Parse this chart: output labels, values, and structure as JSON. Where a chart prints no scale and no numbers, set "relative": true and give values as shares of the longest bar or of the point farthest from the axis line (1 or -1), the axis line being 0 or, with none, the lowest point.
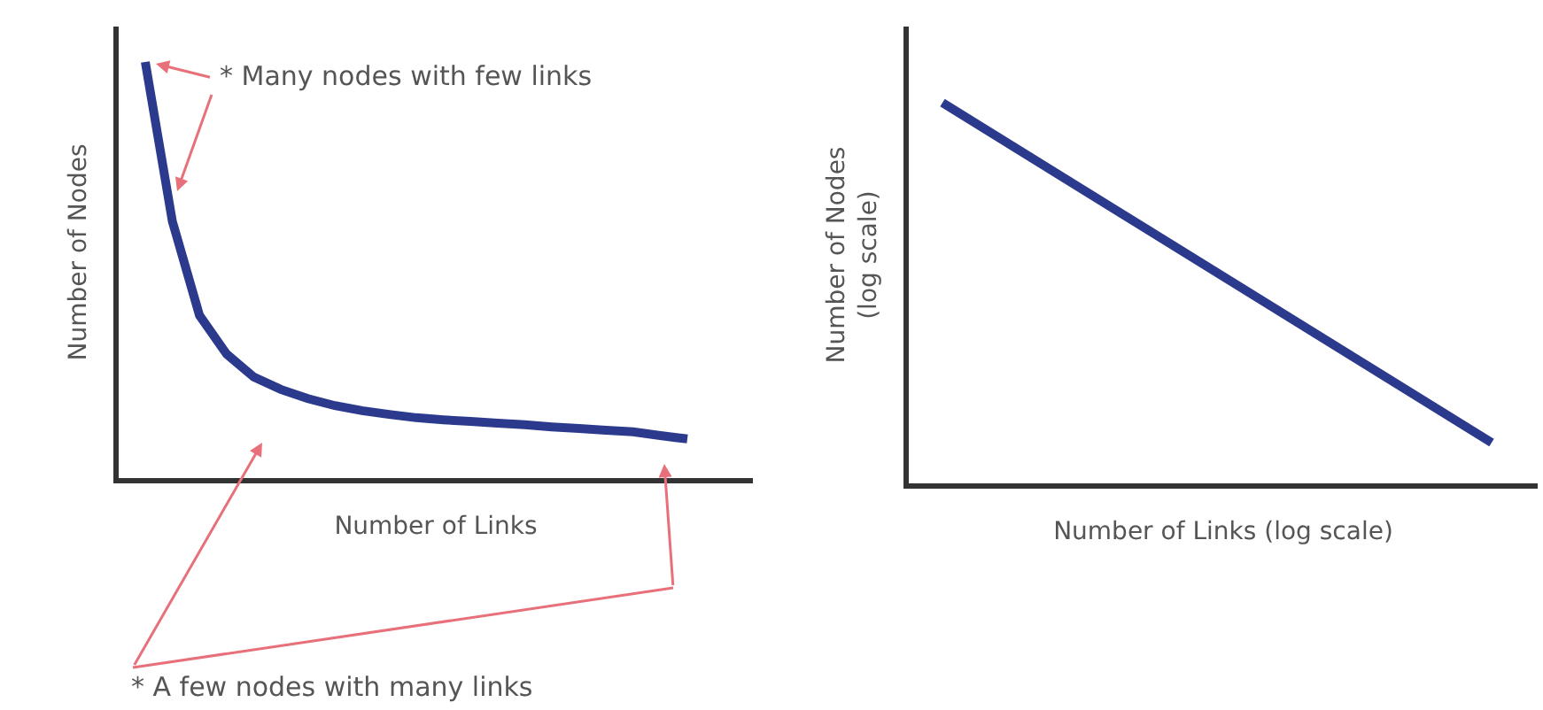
{
  "chart_data": [
    {
      "type": "line",
      "relative": true,
      "xlabel": "Number of Links",
      "ylabel": "Number of Nodes",
      "categories": [
        null,
        null,
        null,
        null,
        null,
        null,
        null,
        null,
        null,
        null,
        null,
        null,
        null,
        null,
        null,
        null,
        null,
        null,
        null,
        null,
        null
      ],
      "series": [
        {
          "color": "#2b3a8c",
          "values": [
            1,
            0.617,
            0.391,
            0.298,
            0.243,
            0.213,
            0.191,
            0.174,
            0.162,
            0.153,
            0.145,
            0.14,
            0.136,
            0.132,
            0.128,
            0.123,
            0.119,
            0.115,
            0.111,
            0.102,
            0.094
          ]
        }
      ],
      "annotations": [
        "* Many nodes with few links",
        "* A few nodes with many links"
      ],
      "marker": "none",
      "line_style": "solid"
    },
    {
      "type": "line",
      "relative": true,
      "xlabel": "Number of Links (log scale)",
      "ylabel": "Number of Nodes\n(log scale)",
      "categories": [
        null,
        null
      ],
      "series": [
        {
          "color": "#2b3a8c",
          "values": [
            1,
            0.107
          ]
        }
      ],
      "marker": "none",
      "line_style": "solid"
    }
  ]
}
